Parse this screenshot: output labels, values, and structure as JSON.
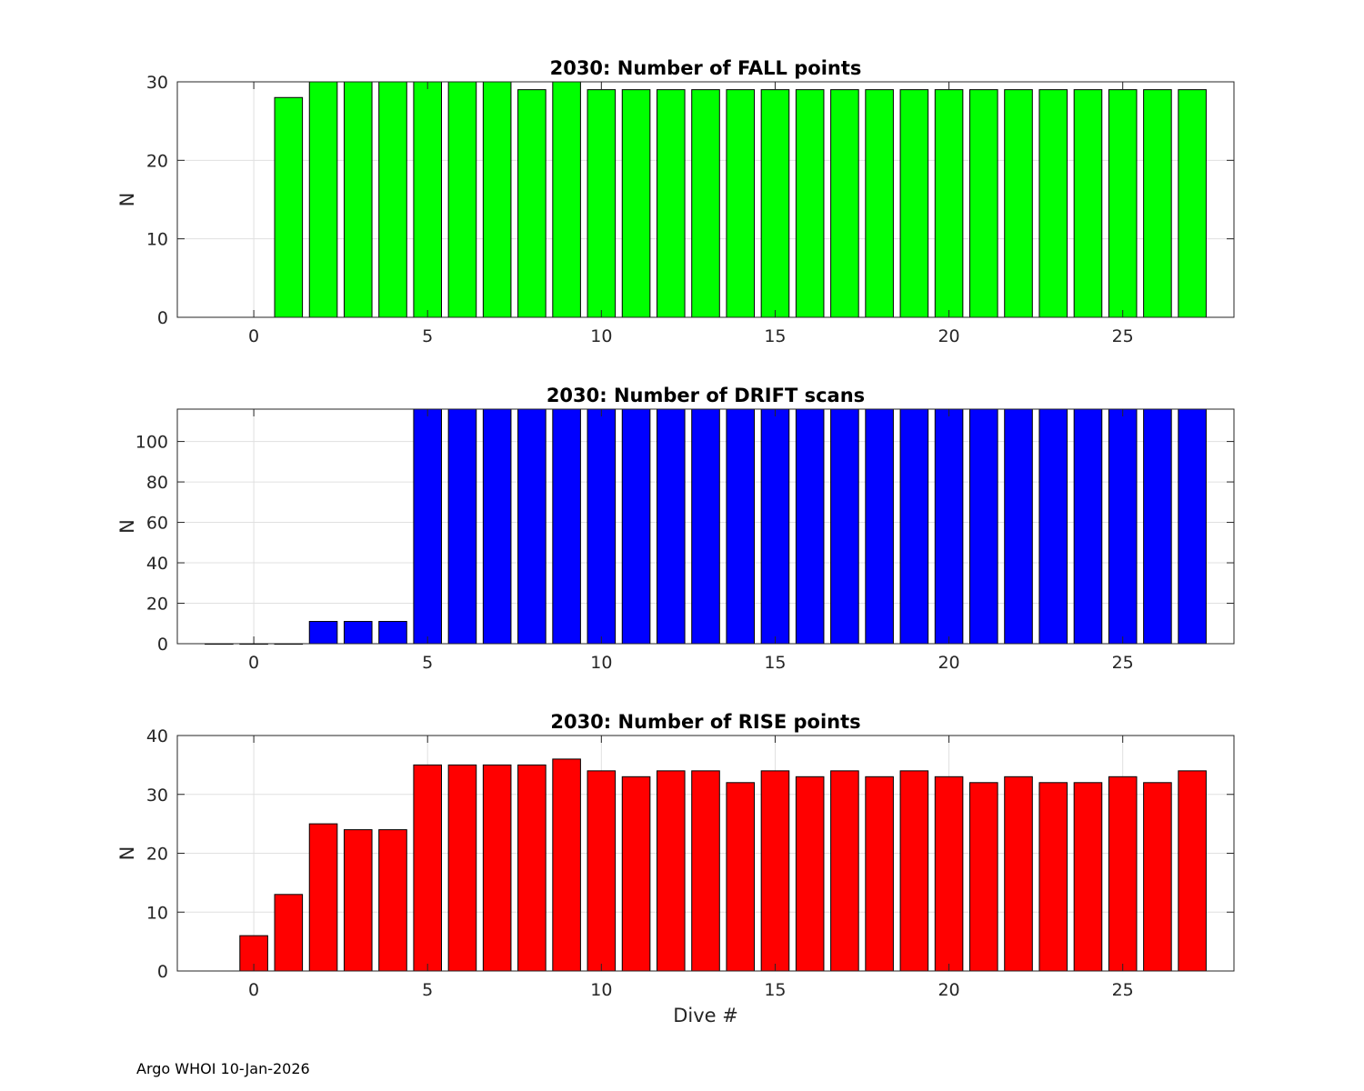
{
  "footer": "Argo WHOI 10-Jan-2026",
  "chart_data": [
    {
      "type": "bar",
      "title": "2030: Number of FALL points",
      "xlabel": "",
      "ylabel": "N",
      "color": "#00ff00",
      "xlim": [
        -2.2,
        28.2
      ],
      "ylim": [
        0,
        30
      ],
      "xticks": [
        0,
        5,
        10,
        15,
        20,
        25
      ],
      "yticks": [
        0,
        10,
        20,
        30
      ],
      "grid": true,
      "x": [
        1,
        2,
        3,
        4,
        5,
        6,
        7,
        8,
        9,
        10,
        11,
        12,
        13,
        14,
        15,
        16,
        17,
        18,
        19,
        20,
        21,
        22,
        23,
        24,
        25,
        26,
        27
      ],
      "values": [
        28,
        30,
        30,
        30,
        30,
        30,
        30,
        29,
        30,
        29,
        29,
        29,
        29,
        29,
        29,
        29,
        29,
        29,
        29,
        29,
        29,
        29,
        29,
        29,
        29,
        29,
        29
      ]
    },
    {
      "type": "bar",
      "title": "2030: Number of DRIFT scans",
      "xlabel": "",
      "ylabel": "N",
      "color": "#0000ff",
      "xlim": [
        -2.2,
        28.2
      ],
      "ylim": [
        0,
        116
      ],
      "xticks": [
        0,
        5,
        10,
        15,
        20,
        25
      ],
      "yticks": [
        0,
        20,
        40,
        60,
        80,
        100
      ],
      "grid": true,
      "x": [
        -1,
        0,
        1,
        2,
        3,
        4,
        5,
        6,
        7,
        8,
        9,
        10,
        11,
        12,
        13,
        14,
        15,
        16,
        17,
        18,
        19,
        20,
        21,
        22,
        23,
        24,
        25,
        26,
        27
      ],
      "values": [
        0,
        0,
        0,
        11,
        11,
        11,
        116,
        116,
        116,
        116,
        116,
        116,
        116,
        116,
        116,
        116,
        116,
        116,
        116,
        116,
        116,
        116,
        116,
        116,
        116,
        116,
        116,
        116,
        116
      ]
    },
    {
      "type": "bar",
      "title": "2030: Number of RISE points",
      "xlabel": "Dive #",
      "ylabel": "N",
      "color": "#ff0000",
      "xlim": [
        -2.2,
        28.2
      ],
      "ylim": [
        0,
        40
      ],
      "xticks": [
        0,
        5,
        10,
        15,
        20,
        25
      ],
      "yticks": [
        0,
        10,
        20,
        30,
        40
      ],
      "grid": true,
      "x": [
        0,
        1,
        2,
        3,
        4,
        5,
        6,
        7,
        8,
        9,
        10,
        11,
        12,
        13,
        14,
        15,
        16,
        17,
        18,
        19,
        20,
        21,
        22,
        23,
        24,
        25,
        26,
        27
      ],
      "values": [
        6,
        13,
        25,
        24,
        24,
        35,
        35,
        35,
        35,
        36,
        34,
        33,
        34,
        34,
        32,
        34,
        33,
        34,
        33,
        34,
        33,
        32,
        33,
        32,
        32,
        33,
        32,
        34
      ]
    }
  ]
}
